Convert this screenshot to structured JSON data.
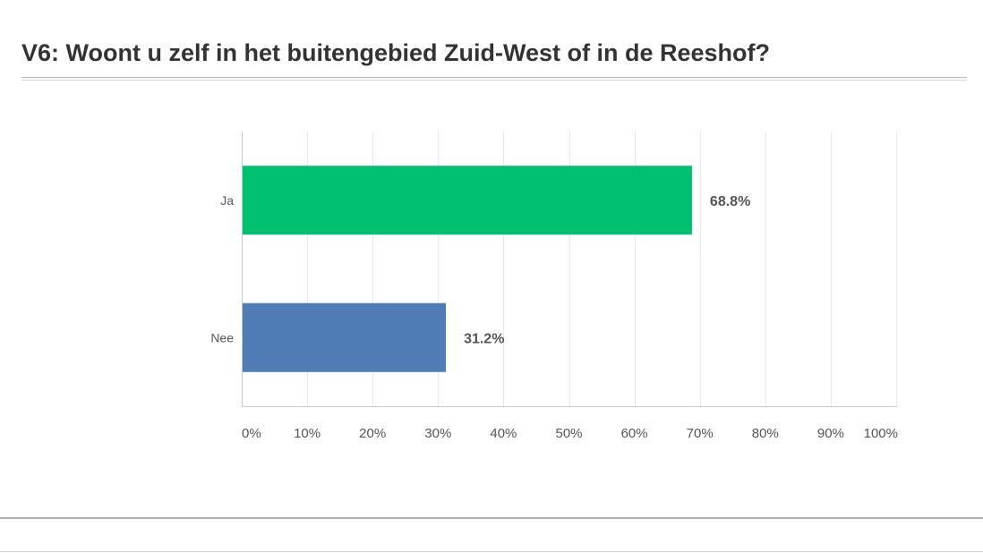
{
  "question": {
    "title": "V6: Woont u zelf in het buitengebied Zuid-West of in de Reeshof?"
  },
  "chart_data": {
    "type": "bar",
    "orientation": "horizontal",
    "title": "V6: Woont u zelf in het buitengebied Zuid-West of in de Reeshof?",
    "xlabel": "",
    "ylabel": "",
    "categories": [
      "Ja",
      "Nee"
    ],
    "values": [
      68.8,
      31.2
    ],
    "data_labels": [
      "68.8%",
      "31.2%"
    ],
    "colors": [
      "#00bf6f",
      "#507cb6"
    ],
    "xlim": [
      0,
      100
    ],
    "ticks": [
      0,
      10,
      20,
      30,
      40,
      50,
      60,
      70,
      80,
      90,
      100
    ],
    "tick_labels": [
      "0%",
      "10%",
      "20%",
      "30%",
      "40%",
      "50%",
      "60%",
      "70%",
      "80%",
      "90%",
      "100%"
    ],
    "grid": "vertical",
    "legend": "none"
  }
}
